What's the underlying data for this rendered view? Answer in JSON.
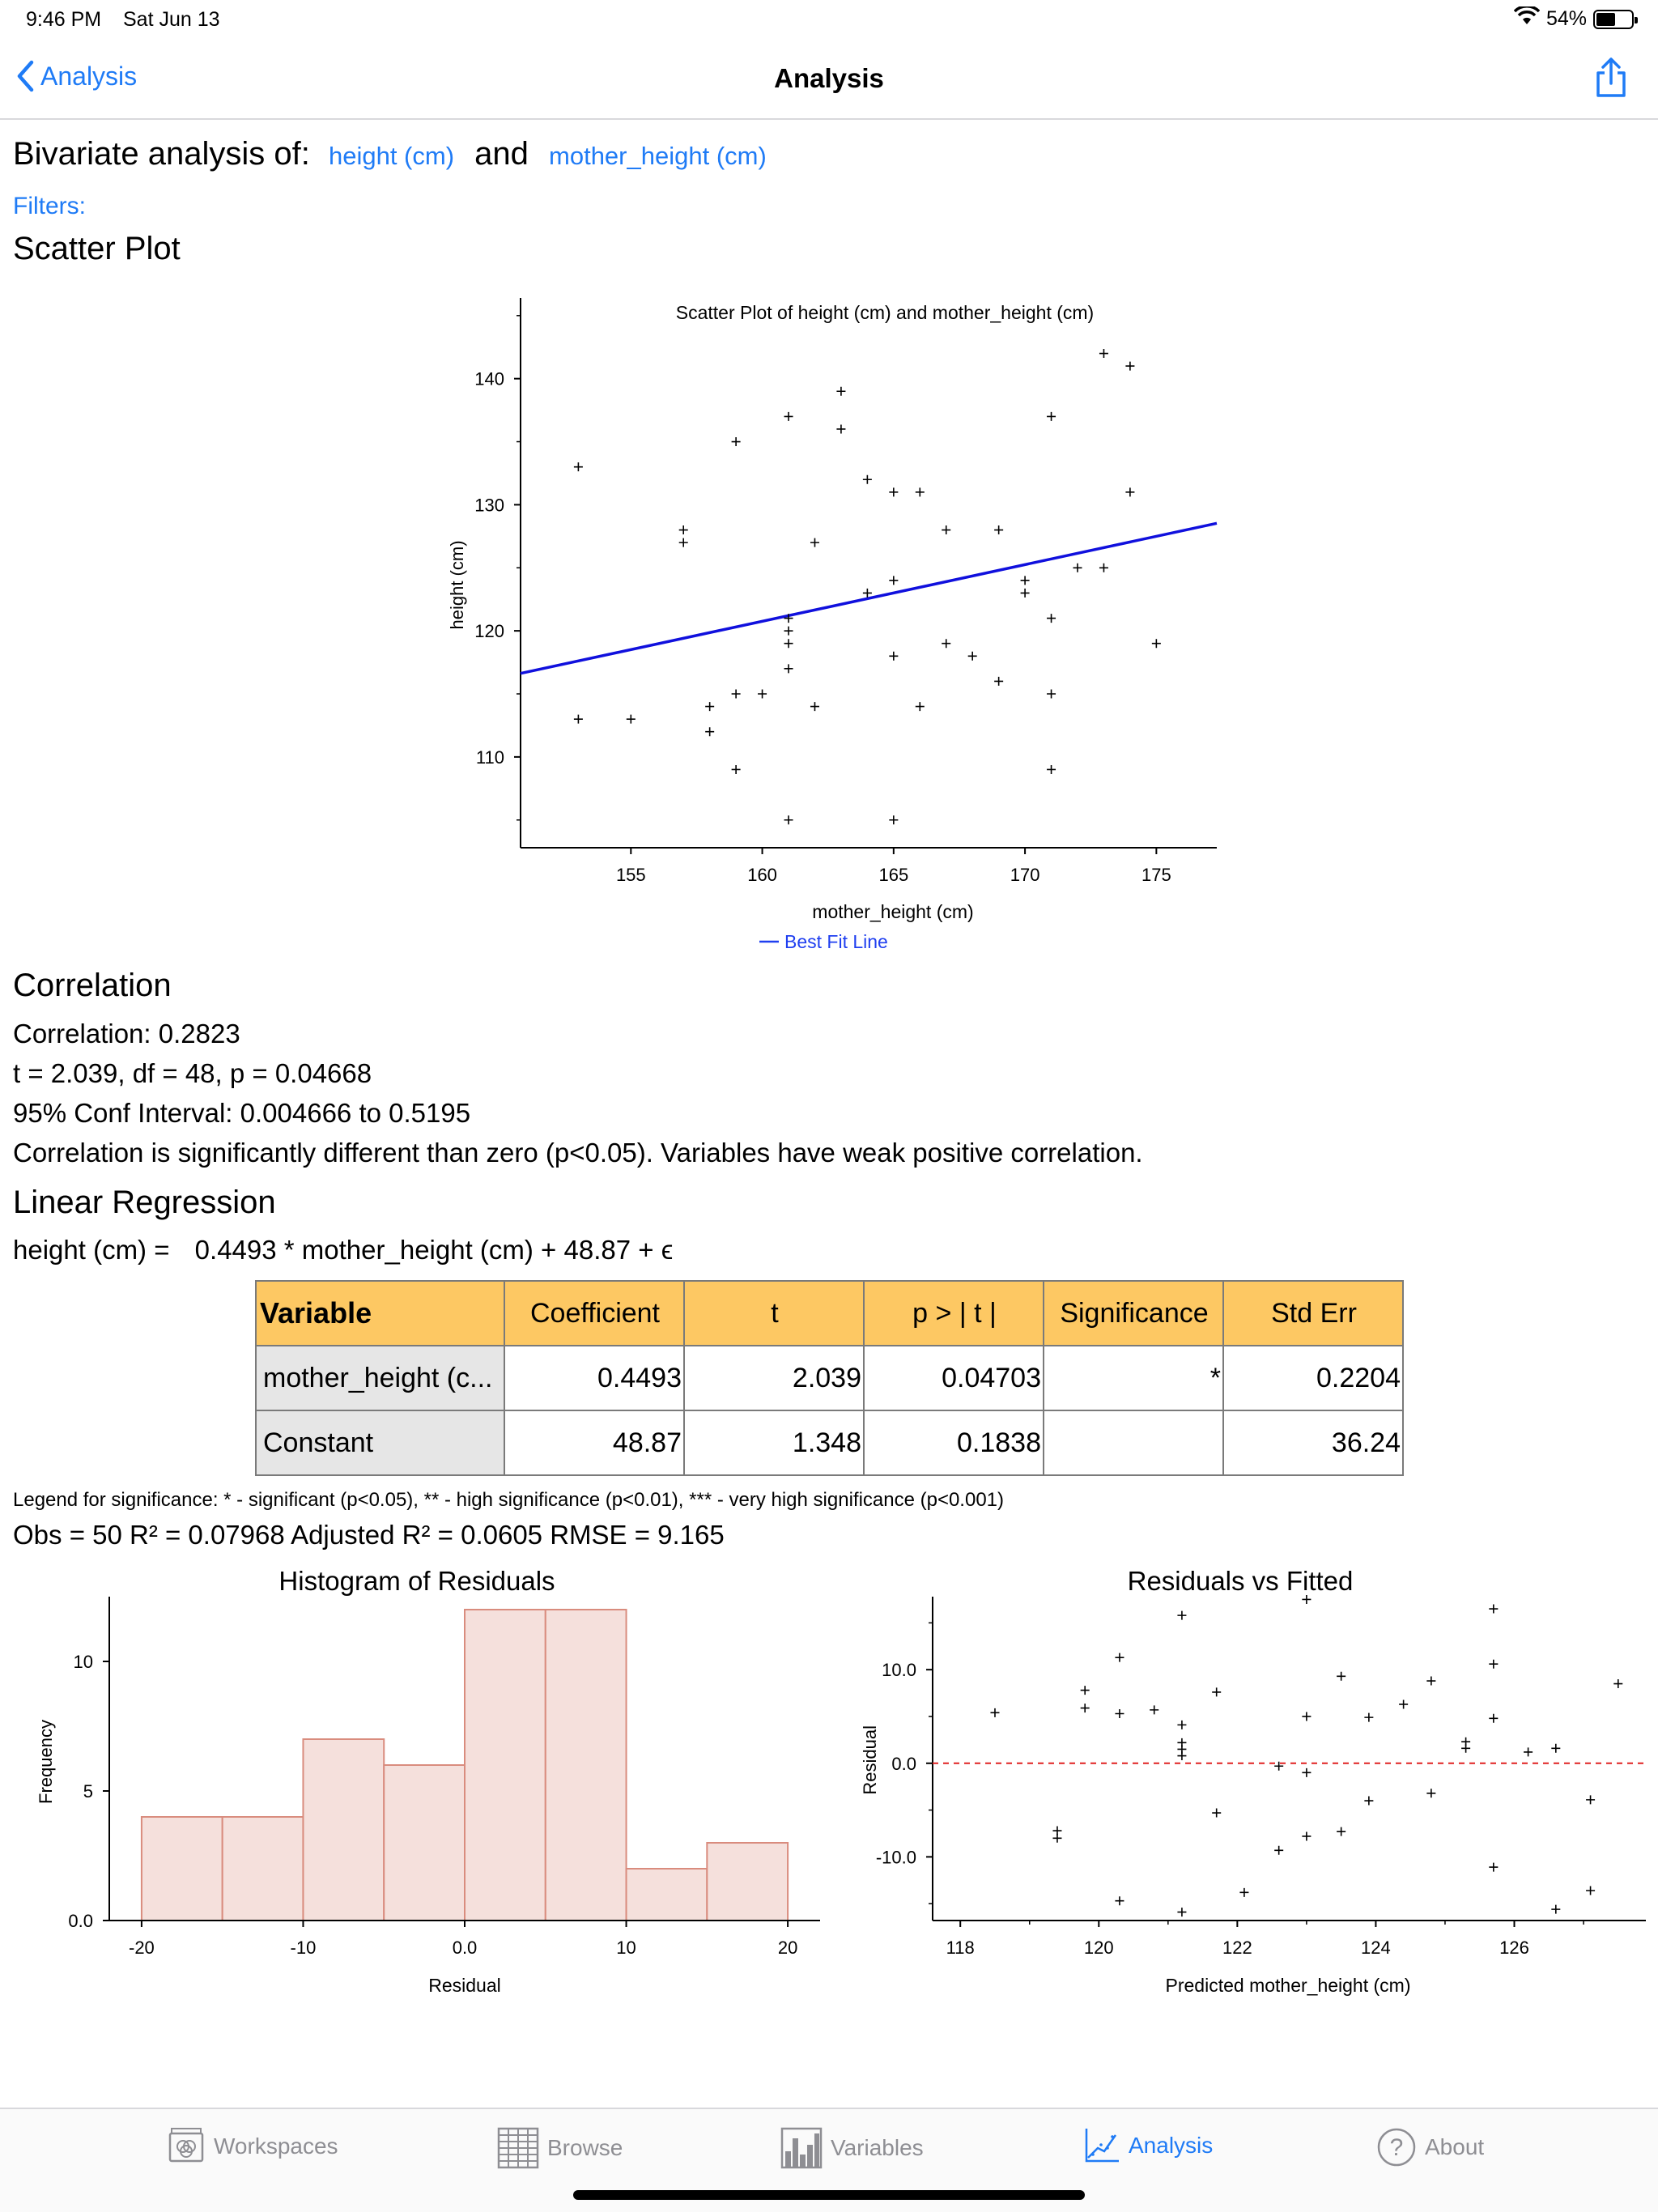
{
  "status": {
    "time": "9:46 PM",
    "date": "Sat Jun 13",
    "battery": "54%",
    "battery_level": 0.54
  },
  "nav": {
    "back_label": "Analysis",
    "title": "Analysis"
  },
  "header": {
    "prefix": "Bivariate analysis of:",
    "var1": "height (cm)",
    "and": "and",
    "var2": "mother_height (cm)",
    "filters": "Filters:"
  },
  "scatter_section_title": "Scatter Plot",
  "correlation": {
    "title": "Correlation",
    "value": "Correlation: 0.2823",
    "test": "t = 2.039, df = 48, p = 0.04668",
    "ci": "95% Conf Interval: 0.004666 to 0.5195",
    "conclusion": "Correlation is significantly different than zero (p<0.05). Variables have weak positive correlation."
  },
  "regression": {
    "title": "Linear Regression",
    "equation_lhs": "height (cm) =",
    "equation_rhs": "0.4493 * mother_height (cm) + 48.87 + ϵ",
    "columns": [
      "Variable",
      "Coefficient",
      "t",
      "p > | t |",
      "Significance",
      "Std Err"
    ],
    "rows": [
      [
        "mother_height (c...",
        "0.4493",
        "2.039",
        "0.04703",
        "*",
        "0.2204"
      ],
      [
        "Constant",
        "48.87",
        "1.348",
        "0.1838",
        "",
        "36.24"
      ]
    ],
    "legend": "Legend for significance: * - significant (p<0.05), ** - high significance (p<0.01), *** - very high significance (p<0.001)",
    "stats": "Obs = 50  R² = 0.07968  Adjusted R² = 0.0605  RMSE = 9.165"
  },
  "chart_data": [
    {
      "type": "scatter",
      "title": "Scatter Plot of height (cm) and mother_height (cm)",
      "xlabel": "mother_height (cm)",
      "ylabel": "height (cm)",
      "xlim": [
        150.8,
        177.3
      ],
      "ylim": [
        102.8,
        146.4
      ],
      "xticks": [
        155,
        160,
        165,
        170,
        175
      ],
      "yticks": [
        110,
        120,
        130,
        140
      ],
      "legend": "Best Fit Line",
      "line_color": "#1010dd",
      "best_fit": {
        "slope": 0.4493,
        "intercept": 48.87
      },
      "points": [
        [
          153,
          133
        ],
        [
          153,
          113
        ],
        [
          155,
          113
        ],
        [
          157,
          128
        ],
        [
          157,
          127
        ],
        [
          158,
          114
        ],
        [
          158,
          112
        ],
        [
          159,
          135
        ],
        [
          159,
          115
        ],
        [
          159,
          109
        ],
        [
          160,
          115
        ],
        [
          161,
          137
        ],
        [
          161,
          121
        ],
        [
          161,
          120
        ],
        [
          161,
          119
        ],
        [
          161,
          117
        ],
        [
          161,
          105
        ],
        [
          162,
          127
        ],
        [
          162,
          114
        ],
        [
          163,
          139
        ],
        [
          163,
          136
        ],
        [
          164,
          132
        ],
        [
          164,
          123
        ],
        [
          165,
          131
        ],
        [
          165,
          124
        ],
        [
          165,
          118
        ],
        [
          165,
          105
        ],
        [
          166,
          131
        ],
        [
          166,
          114
        ],
        [
          167,
          128
        ],
        [
          167,
          119
        ],
        [
          168,
          118
        ],
        [
          169,
          128
        ],
        [
          169,
          116
        ],
        [
          170,
          124
        ],
        [
          170,
          123
        ],
        [
          171,
          137
        ],
        [
          171,
          121
        ],
        [
          171,
          115
        ],
        [
          171,
          109
        ],
        [
          172,
          125
        ],
        [
          173,
          142
        ],
        [
          173,
          125
        ],
        [
          174,
          141
        ],
        [
          174,
          131
        ],
        [
          175,
          119
        ]
      ]
    },
    {
      "type": "bar",
      "title": "Histogram of Residuals",
      "xlabel": "Residual",
      "ylabel": "Frequency",
      "xlim": [
        -22,
        22
      ],
      "ylim": [
        0,
        12.5
      ],
      "xticks": [
        "-20",
        "-10",
        "0.0",
        "10",
        "20"
      ],
      "yticks": [
        "0.0",
        "5",
        "10"
      ],
      "bin_edges": [
        -20,
        -15,
        -10,
        -5,
        0,
        5,
        10,
        15,
        20
      ],
      "values": [
        4,
        4,
        7,
        6,
        12,
        12,
        2,
        3
      ],
      "fill": "#f5e0dc",
      "stroke": "#d98c7e"
    },
    {
      "type": "scatter",
      "title": "Residuals vs Fitted",
      "xlabel": "Predicted mother_height (cm)",
      "ylabel": "Residual",
      "xlim": [
        117.6,
        127.9
      ],
      "ylim": [
        -16.8,
        17.8
      ],
      "xticks": [
        "118",
        "120",
        "122",
        "124",
        "126"
      ],
      "yticks": [
        "10.0",
        "0.0",
        "-10.0"
      ],
      "reference_line": 0,
      "reference_color": "#e02020",
      "points": [
        [
          118.5,
          5.4
        ],
        [
          119.4,
          -7.2
        ],
        [
          119.4,
          -8
        ],
        [
          119.8,
          7.8
        ],
        [
          119.8,
          5.9
        ],
        [
          120.3,
          11.3
        ],
        [
          120.3,
          5.3
        ],
        [
          120.3,
          -14.7
        ],
        [
          120.8,
          5.7
        ],
        [
          121.2,
          15.8
        ],
        [
          121.2,
          4.1
        ],
        [
          121.2,
          2.2
        ],
        [
          121.2,
          1.5
        ],
        [
          121.2,
          0.8
        ],
        [
          121.2,
          -15.9
        ],
        [
          121.7,
          7.6
        ],
        [
          121.7,
          -5.3
        ],
        [
          122.1,
          -13.8
        ],
        [
          122.6,
          -0.3
        ],
        [
          122.6,
          -9.3
        ],
        [
          123,
          17.5
        ],
        [
          123,
          5
        ],
        [
          123,
          -1
        ],
        [
          123,
          -7.8
        ],
        [
          123.5,
          9.3
        ],
        [
          123.5,
          -7.3
        ],
        [
          123.9,
          4.9
        ],
        [
          123.9,
          -4
        ],
        [
          124.4,
          6.3
        ],
        [
          124.8,
          8.8
        ],
        [
          124.8,
          -3.2
        ],
        [
          125.3,
          2.3
        ],
        [
          125.3,
          1.6
        ],
        [
          125.7,
          16.5
        ],
        [
          125.7,
          10.6
        ],
        [
          125.7,
          4.8
        ],
        [
          125.7,
          -11.1
        ],
        [
          126.2,
          1.2
        ],
        [
          126.6,
          1.6
        ],
        [
          126.6,
          -15.6
        ],
        [
          127.1,
          -3.9
        ],
        [
          127.1,
          -13.6
        ],
        [
          127.5,
          8.5
        ]
      ]
    }
  ],
  "tabs": [
    {
      "label": "Workspaces",
      "icon": "workspaces-icon",
      "active": false
    },
    {
      "label": "Browse",
      "icon": "grid-icon",
      "active": false
    },
    {
      "label": "Variables",
      "icon": "bar-chart-icon",
      "active": false
    },
    {
      "label": "Analysis",
      "icon": "analysis-icon",
      "active": true
    },
    {
      "label": "About",
      "icon": "question-icon",
      "active": false
    }
  ],
  "colors": {
    "accent": "#1f7bf6",
    "header_fill": "#fdc863",
    "variable_cell": "#e6e6e6"
  }
}
